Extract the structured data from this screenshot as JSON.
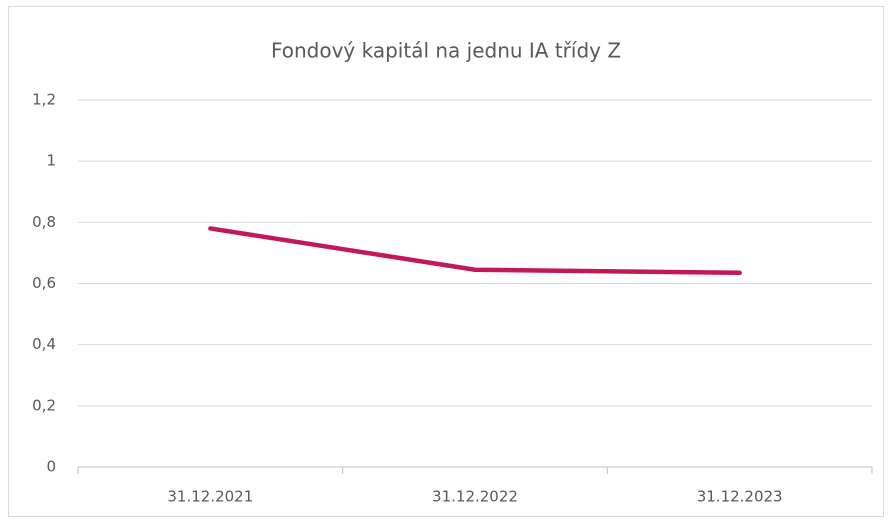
{
  "chart_data": {
    "type": "line",
    "title": "Fondový kapitál na jednu IA třídy Z",
    "categories": [
      "31.12.2021",
      "31.12.2022",
      "31.12.2023"
    ],
    "series": [
      {
        "name": "Fondový kapitál na jednu IA třídy Z",
        "color": "#c2185b",
        "values": [
          0.78,
          0.645,
          0.635
        ]
      }
    ],
    "ylim": [
      0,
      1.2
    ],
    "yticks": [
      0,
      {
        "value": 0.2,
        "label": "0,2"
      },
      {
        "value": 0.4,
        "label": "0,4"
      },
      {
        "value": 0.6,
        "label": "0,6"
      },
      {
        "value": 0.8,
        "label": "0,8"
      },
      1,
      {
        "value": 1.2,
        "label": "1,2"
      }
    ],
    "grid": true
  }
}
